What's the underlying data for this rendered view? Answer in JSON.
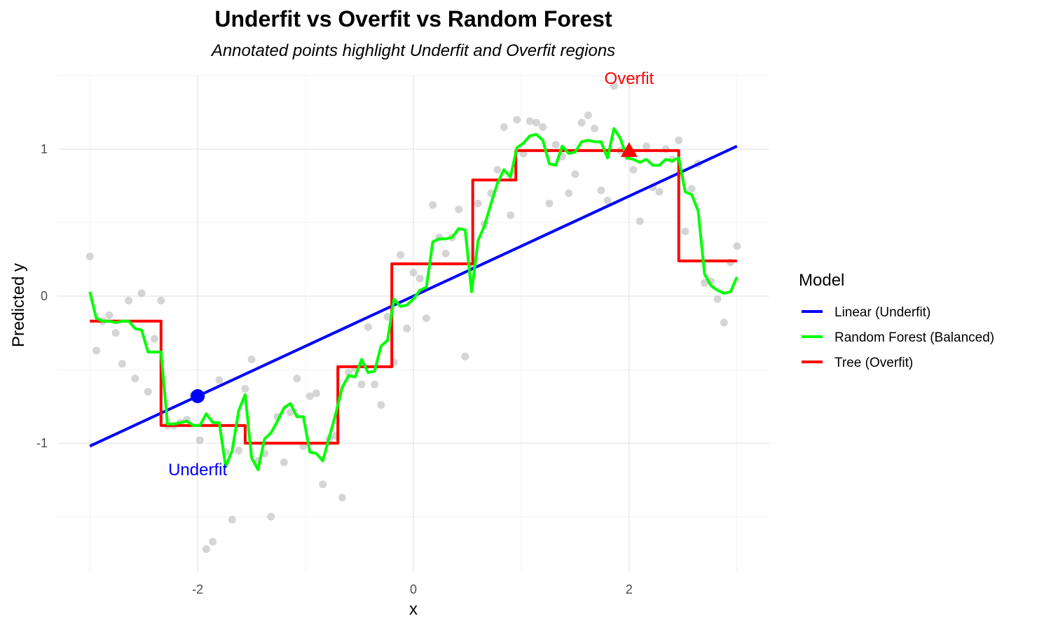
{
  "chart_data": {
    "type": "line",
    "title": "Underfit vs Overfit vs Random Forest",
    "subtitle": "Annotated points highlight Underfit and Overfit regions",
    "xlabel": "x",
    "ylabel": "Predicted y",
    "xlim": [
      -3.3,
      3.3
    ],
    "ylim": [
      -1.88,
      1.5
    ],
    "x_ticks": [
      -2,
      0,
      2
    ],
    "x_tick_labels": [
      "-2",
      "0",
      "2"
    ],
    "y_ticks": [
      -1,
      0,
      1
    ],
    "y_tick_labels": [
      "-1",
      "0",
      "1"
    ],
    "grid": true,
    "legend": {
      "title": "Model",
      "placement": "right",
      "items": [
        {
          "label": "Linear (Underfit)",
          "color": "#0000ff"
        },
        {
          "label": "Random Forest (Balanced)",
          "color": "#00ff00"
        },
        {
          "label": "Tree (Overfit)",
          "color": "#ff0000"
        }
      ]
    },
    "observed_points": {
      "color": "#bfbfbf",
      "points": [
        [
          -3.0,
          0.27
        ],
        [
          -2.94,
          -0.37
        ],
        [
          -2.88,
          -0.17
        ],
        [
          -2.82,
          -0.13
        ],
        [
          -2.76,
          -0.25
        ],
        [
          -2.7,
          -0.46
        ],
        [
          -2.64,
          -0.03
        ],
        [
          -2.58,
          -0.56
        ],
        [
          -2.52,
          0.02
        ],
        [
          -2.46,
          -0.65
        ],
        [
          -2.4,
          -0.29
        ],
        [
          -2.34,
          -0.03
        ],
        [
          -2.28,
          -0.88
        ],
        [
          -2.22,
          -0.88
        ],
        [
          -2.16,
          -0.86
        ],
        [
          -2.1,
          -0.84
        ],
        [
          -2.04,
          -0.67
        ],
        [
          -1.98,
          -0.98
        ],
        [
          -1.92,
          -1.72
        ],
        [
          -1.86,
          -1.67
        ],
        [
          -1.8,
          -0.57
        ],
        [
          -1.74,
          -1.06
        ],
        [
          -1.68,
          -1.52
        ],
        [
          -1.62,
          -1.05
        ],
        [
          -1.56,
          -0.63
        ],
        [
          -1.5,
          -0.43
        ],
        [
          -1.44,
          -1.12
        ],
        [
          -1.38,
          -1.07
        ],
        [
          -1.32,
          -1.5
        ],
        [
          -1.26,
          -0.82
        ],
        [
          -1.2,
          -1.13
        ],
        [
          -1.14,
          -0.79
        ],
        [
          -1.08,
          -0.56
        ],
        [
          -1.02,
          -1.02
        ],
        [
          -0.96,
          -0.68
        ],
        [
          -0.9,
          -0.66
        ],
        [
          -0.84,
          -1.28
        ],
        [
          -0.78,
          -0.97
        ],
        [
          -0.72,
          -0.95
        ],
        [
          -0.66,
          -1.37
        ],
        [
          -0.6,
          -0.52
        ],
        [
          -0.54,
          -0.49
        ],
        [
          -0.48,
          -0.6
        ],
        [
          -0.42,
          -0.21
        ],
        [
          -0.36,
          -0.6
        ],
        [
          -0.3,
          -0.74
        ],
        [
          -0.24,
          -0.14
        ],
        [
          -0.18,
          -0.45
        ],
        [
          -0.12,
          0.28
        ],
        [
          -0.06,
          -0.22
        ],
        [
          0.0,
          0.16
        ],
        [
          0.06,
          0.12
        ],
        [
          0.12,
          -0.15
        ],
        [
          0.18,
          0.62
        ],
        [
          0.24,
          0.4
        ],
        [
          0.3,
          0.29
        ],
        [
          0.36,
          0.4
        ],
        [
          0.42,
          0.59
        ],
        [
          0.48,
          -0.41
        ],
        [
          0.54,
          0.2
        ],
        [
          0.6,
          0.63
        ],
        [
          0.66,
          0.49
        ],
        [
          0.72,
          0.7
        ],
        [
          0.78,
          0.86
        ],
        [
          0.84,
          1.15
        ],
        [
          0.9,
          0.55
        ],
        [
          0.96,
          1.2
        ],
        [
          1.02,
          0.97
        ],
        [
          1.08,
          1.19
        ],
        [
          1.14,
          1.18
        ],
        [
          1.2,
          1.15
        ],
        [
          1.26,
          0.63
        ],
        [
          1.32,
          1.03
        ],
        [
          1.38,
          0.95
        ],
        [
          1.44,
          0.7
        ],
        [
          1.5,
          0.83
        ],
        [
          1.56,
          1.18
        ],
        [
          1.62,
          1.23
        ],
        [
          1.68,
          1.14
        ],
        [
          1.74,
          0.72
        ],
        [
          1.8,
          0.65
        ],
        [
          1.86,
          1.43
        ],
        [
          1.92,
          0.99
        ],
        [
          1.98,
          0.95
        ],
        [
          2.04,
          0.86
        ],
        [
          2.1,
          0.51
        ],
        [
          2.16,
          1.02
        ],
        [
          2.22,
          0.74
        ],
        [
          2.28,
          0.71
        ],
        [
          2.34,
          1.0
        ],
        [
          2.4,
          0.93
        ],
        [
          2.46,
          1.06
        ],
        [
          2.52,
          0.44
        ],
        [
          2.58,
          0.73
        ],
        [
          2.64,
          0.9
        ],
        [
          2.7,
          0.09
        ],
        [
          2.76,
          0.1
        ],
        [
          2.82,
          -0.02
        ],
        [
          2.88,
          -0.18
        ],
        [
          2.94,
          0.23
        ],
        [
          3.0,
          0.34
        ]
      ]
    },
    "series": [
      {
        "name": "Linear (Underfit)",
        "color": "#0000ff",
        "x": [
          -3.0,
          3.0
        ],
        "y": [
          -1.02,
          1.02
        ]
      },
      {
        "name": "Tree (Overfit)",
        "color": "#ff0000",
        "x": [
          -3.0,
          -2.34,
          -2.34,
          -1.56,
          -1.56,
          -0.7,
          -0.7,
          -0.2,
          -0.2,
          0.55,
          0.55,
          0.95,
          0.95,
          2.46,
          2.46,
          3.0
        ],
        "y": [
          -0.17,
          -0.17,
          -0.88,
          -0.88,
          -1.0,
          -1.0,
          -0.48,
          -0.48,
          0.22,
          0.22,
          0.79,
          0.79,
          0.99,
          0.99,
          0.24,
          0.24
        ]
      },
      {
        "name": "Random Forest (Balanced)",
        "color": "#00ff00",
        "x": [
          -3.0,
          -2.94,
          -2.88,
          -2.82,
          -2.76,
          -2.7,
          -2.64,
          -2.58,
          -2.52,
          -2.46,
          -2.4,
          -2.34,
          -2.28,
          -2.22,
          -2.16,
          -2.1,
          -2.04,
          -1.98,
          -1.92,
          -1.86,
          -1.8,
          -1.74,
          -1.68,
          -1.62,
          -1.56,
          -1.5,
          -1.44,
          -1.38,
          -1.32,
          -1.26,
          -1.2,
          -1.14,
          -1.08,
          -1.02,
          -0.96,
          -0.9,
          -0.84,
          -0.78,
          -0.72,
          -0.66,
          -0.6,
          -0.54,
          -0.48,
          -0.42,
          -0.36,
          -0.3,
          -0.24,
          -0.18,
          -0.12,
          -0.06,
          0.0,
          0.06,
          0.12,
          0.18,
          0.24,
          0.3,
          0.36,
          0.42,
          0.48,
          0.54,
          0.6,
          0.66,
          0.72,
          0.78,
          0.84,
          0.9,
          0.96,
          1.02,
          1.08,
          1.14,
          1.2,
          1.26,
          1.32,
          1.38,
          1.44,
          1.5,
          1.56,
          1.62,
          1.68,
          1.74,
          1.8,
          1.86,
          1.92,
          1.98,
          2.04,
          2.1,
          2.16,
          2.22,
          2.28,
          2.34,
          2.4,
          2.46,
          2.52,
          2.58,
          2.64,
          2.7,
          2.76,
          2.82,
          2.88,
          2.94,
          3.0
        ],
        "y": [
          0.03,
          -0.15,
          -0.17,
          -0.17,
          -0.18,
          -0.17,
          -0.17,
          -0.22,
          -0.23,
          -0.38,
          -0.38,
          -0.38,
          -0.87,
          -0.87,
          -0.86,
          -0.85,
          -0.88,
          -0.88,
          -0.8,
          -0.86,
          -0.86,
          -1.16,
          -1.05,
          -0.78,
          -0.67,
          -1.1,
          -1.18,
          -0.97,
          -0.93,
          -0.85,
          -0.76,
          -0.73,
          -0.82,
          -0.82,
          -1.06,
          -1.07,
          -1.12,
          -0.96,
          -0.8,
          -0.62,
          -0.54,
          -0.55,
          -0.43,
          -0.52,
          -0.51,
          -0.34,
          -0.3,
          -0.02,
          -0.07,
          -0.06,
          -0.02,
          0.04,
          0.06,
          0.37,
          0.39,
          0.39,
          0.4,
          0.46,
          0.45,
          0.03,
          0.38,
          0.48,
          0.63,
          0.77,
          0.86,
          0.81,
          1.01,
          1.04,
          1.09,
          1.1,
          1.06,
          0.9,
          0.89,
          1.02,
          0.97,
          0.98,
          1.05,
          1.06,
          1.05,
          1.05,
          0.94,
          1.14,
          1.07,
          0.94,
          0.93,
          0.91,
          0.93,
          0.89,
          0.89,
          0.93,
          0.92,
          0.94,
          0.71,
          0.69,
          0.58,
          0.15,
          0.07,
          0.04,
          0.02,
          0.03,
          0.13
        ]
      }
    ],
    "annotations": [
      {
        "text": "Underfit",
        "x": -2.0,
        "y": -0.68,
        "marker": "circle",
        "color": "#0000ff",
        "label_x": -2.0,
        "label_y": -1.18
      },
      {
        "text": "Overfit",
        "x": 2.0,
        "y": 0.99,
        "marker": "triangle",
        "color": "#ff0000",
        "label_x": 2.0,
        "label_y": 1.48
      }
    ]
  }
}
